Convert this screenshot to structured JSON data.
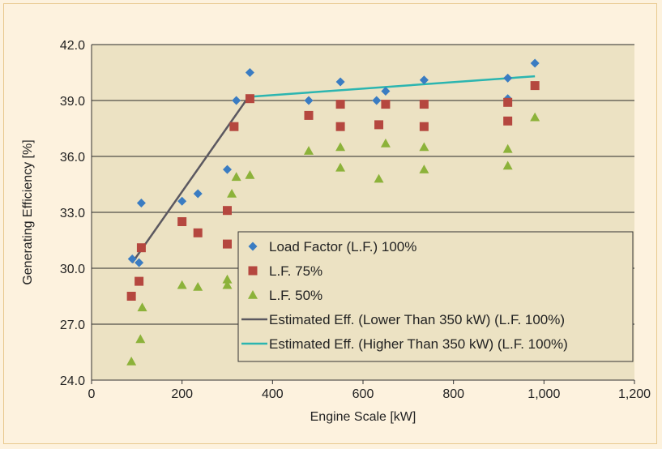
{
  "chart_data": {
    "type": "scatter",
    "xlabel": "Engine Scale [kW]",
    "ylabel": "Generating Efficiency [%]",
    "xlim": [
      0,
      1200
    ],
    "ylim": [
      24.0,
      42.0
    ],
    "x_ticks": [
      "0",
      "200",
      "400",
      "600",
      "800",
      "1,000",
      "1,200"
    ],
    "y_ticks": [
      "24.0",
      "27.0",
      "30.0",
      "33.0",
      "36.0",
      "39.0",
      "42.0"
    ],
    "grid": "horizontal",
    "legend_position": "bottom-right",
    "plot_background": "#ece2c3",
    "series": [
      {
        "name": "Load Factor (L.F.) 100%",
        "marker": "diamond",
        "color": "#3a7cc2",
        "points": [
          [
            90,
            30.5
          ],
          [
            105,
            30.3
          ],
          [
            110,
            33.5
          ],
          [
            200,
            33.6
          ],
          [
            235,
            34.0
          ],
          [
            300,
            35.3
          ],
          [
            320,
            39.0
          ],
          [
            350,
            40.5
          ],
          [
            480,
            39.0
          ],
          [
            550,
            40.0
          ],
          [
            630,
            39.0
          ],
          [
            650,
            39.5
          ],
          [
            735,
            40.1
          ],
          [
            920,
            40.2
          ],
          [
            920,
            39.1
          ],
          [
            980,
            41.0
          ]
        ]
      },
      {
        "name": "L.F. 75%",
        "marker": "square",
        "color": "#b5473f",
        "points": [
          [
            88,
            28.5
          ],
          [
            105,
            29.3
          ],
          [
            110,
            31.1
          ],
          [
            200,
            32.5
          ],
          [
            235,
            31.9
          ],
          [
            300,
            33.1
          ],
          [
            300,
            31.3
          ],
          [
            315,
            37.6
          ],
          [
            350,
            39.1
          ],
          [
            480,
            38.2
          ],
          [
            550,
            38.8
          ],
          [
            550,
            37.6
          ],
          [
            635,
            37.7
          ],
          [
            650,
            38.8
          ],
          [
            735,
            38.8
          ],
          [
            735,
            37.6
          ],
          [
            920,
            38.9
          ],
          [
            920,
            37.9
          ],
          [
            980,
            39.8
          ]
        ]
      },
      {
        "name": "L.F. 50%",
        "marker": "triangle",
        "color": "#8cb23a",
        "points": [
          [
            88,
            25.0
          ],
          [
            108,
            26.2
          ],
          [
            112,
            27.9
          ],
          [
            200,
            29.1
          ],
          [
            235,
            29.0
          ],
          [
            300,
            29.4
          ],
          [
            300,
            29.1
          ],
          [
            310,
            34.0
          ],
          [
            320,
            34.9
          ],
          [
            350,
            35.0
          ],
          [
            480,
            36.3
          ],
          [
            550,
            36.5
          ],
          [
            550,
            35.4
          ],
          [
            635,
            34.8
          ],
          [
            650,
            36.7
          ],
          [
            735,
            36.5
          ],
          [
            735,
            35.3
          ],
          [
            920,
            36.4
          ],
          [
            920,
            35.5
          ],
          [
            980,
            38.1
          ]
        ]
      }
    ],
    "lines": [
      {
        "name": "Estimated Eff. (Lower Than 350 kW) (L.F. 100%)",
        "color": "#5b5860",
        "points": [
          [
            90,
            30.3
          ],
          [
            350,
            39.3
          ]
        ]
      },
      {
        "name": "Estimated Eff. (Higher Than 350 kW) (L.F. 100%)",
        "color": "#2bb5b0",
        "points": [
          [
            350,
            39.2
          ],
          [
            980,
            40.3
          ]
        ]
      }
    ]
  }
}
